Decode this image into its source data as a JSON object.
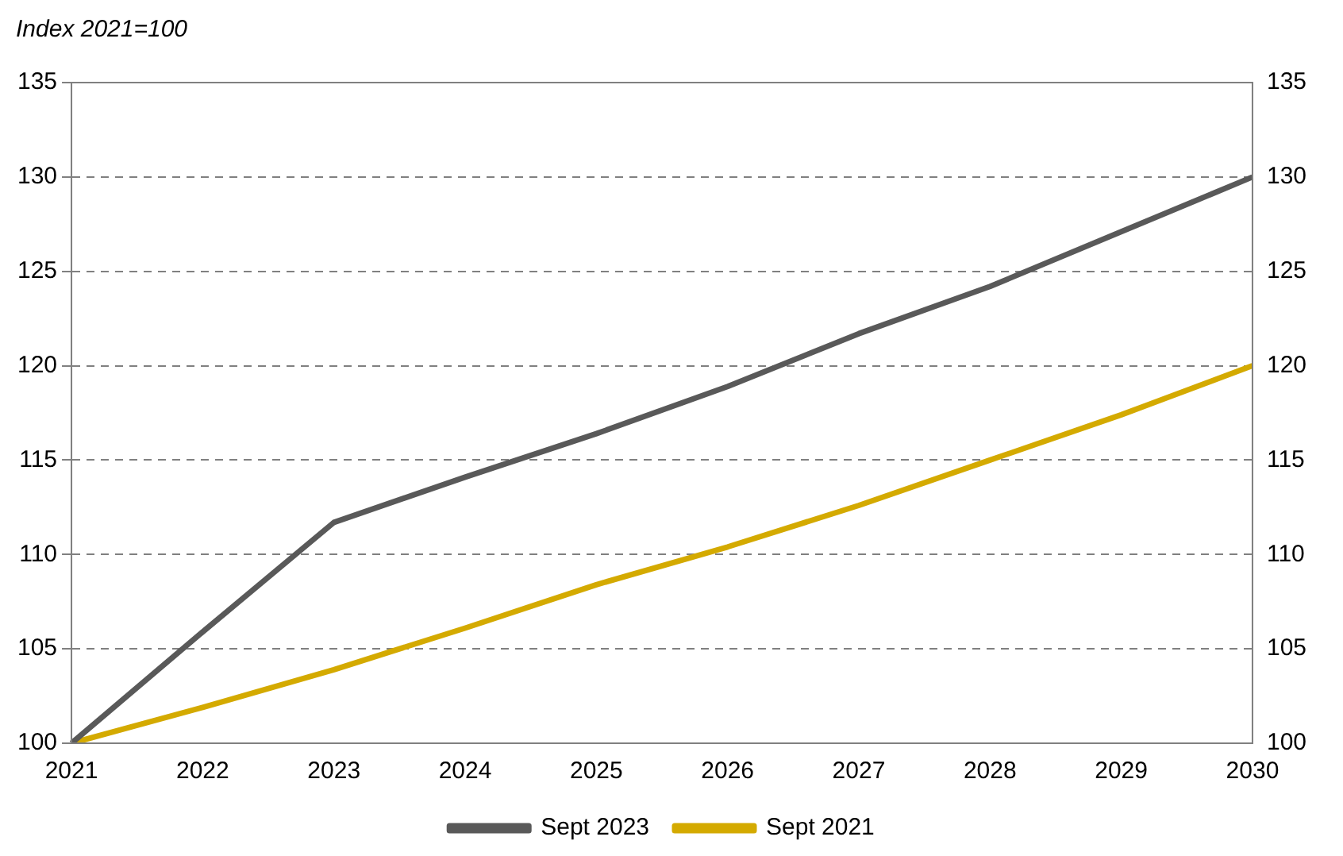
{
  "chart_data": {
    "type": "line",
    "ylabel": "Index 2021=100",
    "categories": [
      "2021",
      "2022",
      "2023",
      "2024",
      "2025",
      "2026",
      "2027",
      "2028",
      "2029",
      "2030"
    ],
    "series": [
      {
        "name": "Sept 2023",
        "color": "#595959",
        "values": [
          100,
          105.9,
          111.7,
          114.1,
          116.4,
          118.9,
          121.7,
          124.2,
          127.1,
          130.0
        ]
      },
      {
        "name": "Sept 2021",
        "color": "#d4aa00",
        "values": [
          100,
          101.9,
          103.9,
          106.1,
          108.4,
          110.4,
          112.6,
          115.0,
          117.4,
          120.0
        ]
      }
    ],
    "ylim": [
      100,
      135
    ],
    "yticks": [
      100,
      105,
      110,
      115,
      120,
      125,
      130,
      135
    ],
    "y2lim": [
      100,
      135
    ],
    "y2ticks": [
      100,
      105,
      110,
      115,
      120,
      125,
      130,
      135
    ],
    "grid": "y",
    "legend": "bottom",
    "marker": "none",
    "line_style": "solid"
  }
}
